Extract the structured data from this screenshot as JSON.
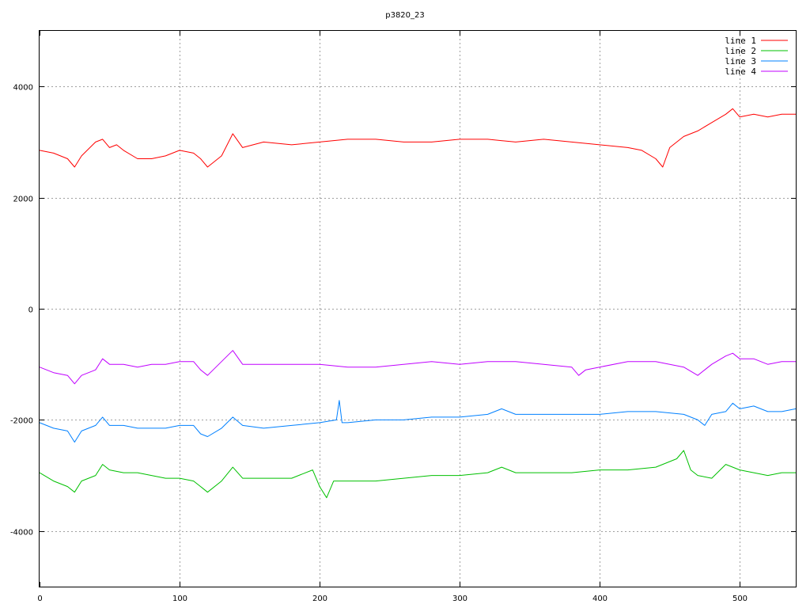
{
  "chart_data": {
    "type": "line",
    "title": "p3820_23",
    "xlim": [
      0,
      540
    ],
    "ylim": [
      -5000,
      5000
    ],
    "x_ticks": [
      0,
      100,
      200,
      300,
      400,
      500
    ],
    "y_ticks": [
      -4000,
      -2000,
      0,
      2000,
      4000
    ],
    "grid": true,
    "legend_position": "top-right",
    "series": [
      {
        "name": "line 1",
        "color": "#ff0000",
        "x": [
          0,
          10,
          20,
          25,
          30,
          40,
          45,
          50,
          55,
          60,
          70,
          80,
          90,
          100,
          110,
          115,
          120,
          130,
          138,
          145,
          160,
          180,
          200,
          220,
          240,
          260,
          280,
          300,
          320,
          340,
          360,
          380,
          400,
          420,
          430,
          440,
          445,
          450,
          460,
          470,
          480,
          490,
          495,
          500,
          510,
          520,
          530,
          540
        ],
        "values": [
          2850,
          2800,
          2700,
          2550,
          2750,
          3000,
          3050,
          2900,
          2950,
          2850,
          2700,
          2700,
          2750,
          2850,
          2800,
          2700,
          2550,
          2750,
          3150,
          2900,
          3000,
          2950,
          3000,
          3050,
          3050,
          3000,
          3000,
          3050,
          3050,
          3000,
          3050,
          3000,
          2950,
          2900,
          2850,
          2700,
          2550,
          2900,
          3100,
          3200,
          3350,
          3500,
          3600,
          3450,
          3500,
          3450,
          3500,
          3500
        ]
      },
      {
        "name": "line 2",
        "color": "#00c000",
        "x": [
          0,
          10,
          20,
          25,
          30,
          40,
          45,
          50,
          60,
          70,
          80,
          90,
          100,
          110,
          115,
          120,
          130,
          138,
          145,
          160,
          180,
          195,
          200,
          205,
          210,
          220,
          240,
          260,
          280,
          300,
          320,
          330,
          340,
          360,
          380,
          400,
          420,
          440,
          455,
          460,
          465,
          470,
          480,
          490,
          500,
          510,
          520,
          530,
          540
        ],
        "values": [
          -2950,
          -3100,
          -3200,
          -3300,
          -3100,
          -3000,
          -2800,
          -2900,
          -2950,
          -2950,
          -3000,
          -3050,
          -3050,
          -3100,
          -3200,
          -3300,
          -3100,
          -2850,
          -3050,
          -3050,
          -3050,
          -2900,
          -3200,
          -3400,
          -3100,
          -3100,
          -3100,
          -3050,
          -3000,
          -3000,
          -2950,
          -2850,
          -2950,
          -2950,
          -2950,
          -2900,
          -2900,
          -2850,
          -2700,
          -2550,
          -2900,
          -3000,
          -3050,
          -2800,
          -2900,
          -2950,
          -3000,
          -2950,
          -2950
        ]
      },
      {
        "name": "line 3",
        "color": "#0080ff",
        "x": [
          0,
          10,
          20,
          25,
          30,
          40,
          45,
          50,
          60,
          70,
          80,
          90,
          100,
          110,
          115,
          120,
          130,
          138,
          145,
          160,
          180,
          200,
          212,
          214,
          216,
          220,
          240,
          260,
          280,
          300,
          320,
          330,
          340,
          360,
          380,
          400,
          420,
          440,
          460,
          470,
          475,
          480,
          490,
          495,
          500,
          510,
          520,
          530,
          540
        ],
        "values": [
          -2050,
          -2150,
          -2200,
          -2400,
          -2200,
          -2100,
          -1950,
          -2100,
          -2100,
          -2150,
          -2150,
          -2150,
          -2100,
          -2100,
          -2250,
          -2300,
          -2150,
          -1950,
          -2100,
          -2150,
          -2100,
          -2050,
          -2000,
          -1650,
          -2050,
          -2050,
          -2000,
          -2000,
          -1950,
          -1950,
          -1900,
          -1800,
          -1900,
          -1900,
          -1900,
          -1900,
          -1850,
          -1850,
          -1900,
          -2000,
          -2100,
          -1900,
          -1850,
          -1700,
          -1800,
          -1750,
          -1850,
          -1850,
          -1800
        ]
      },
      {
        "name": "line 4",
        "color": "#c000ff",
        "x": [
          0,
          10,
          20,
          25,
          30,
          40,
          45,
          50,
          60,
          70,
          80,
          90,
          100,
          110,
          115,
          120,
          130,
          138,
          145,
          160,
          180,
          200,
          220,
          240,
          260,
          280,
          300,
          320,
          340,
          360,
          380,
          385,
          390,
          400,
          420,
          440,
          460,
          470,
          475,
          480,
          490,
          495,
          500,
          510,
          520,
          530,
          540
        ],
        "values": [
          -1050,
          -1150,
          -1200,
          -1350,
          -1200,
          -1100,
          -900,
          -1000,
          -1000,
          -1050,
          -1000,
          -1000,
          -950,
          -950,
          -1100,
          -1200,
          -950,
          -750,
          -1000,
          -1000,
          -1000,
          -1000,
          -1050,
          -1050,
          -1000,
          -950,
          -1000,
          -950,
          -950,
          -1000,
          -1050,
          -1200,
          -1100,
          -1050,
          -950,
          -950,
          -1050,
          -1200,
          -1100,
          -1000,
          -850,
          -800,
          -900,
          -900,
          -1000,
          -950,
          -950
        ]
      }
    ]
  }
}
